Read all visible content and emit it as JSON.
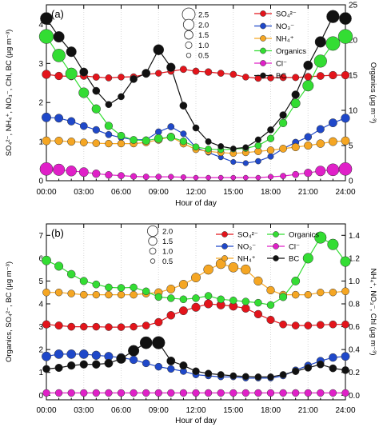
{
  "chart_data": [
    {
      "type": "line",
      "panel_label": "(a)",
      "xlabel": "Hour of day",
      "ylabel_left": "SO₄²⁻, NH₄⁺, NO₃⁻, Chl, BC (μg m⁻³)",
      "ylabel_right": "Organics (μg m⁻³)",
      "x_ticks": [
        "00:00",
        "03:00",
        "06:00",
        "09:00",
        "12:00",
        "15:00",
        "18:00",
        "21:00",
        "24:00"
      ],
      "ylim_left": [
        0,
        4.5
      ],
      "yticks_left": [
        "0",
        "1",
        "2",
        "3",
        "4"
      ],
      "ylim_right": [
        0,
        25
      ],
      "yticks_right": [
        "0",
        "5",
        "10",
        "15",
        "20",
        "25"
      ],
      "size_legend": {
        "values": [
          "2.5",
          "2.0",
          "1.5",
          "1.0",
          "0.5"
        ],
        "position": "top-center"
      },
      "legend_position": "top-right",
      "grid": true,
      "x": [
        0,
        1,
        2,
        3,
        4,
        5,
        6,
        7,
        8,
        9,
        10,
        11,
        12,
        13,
        14,
        15,
        16,
        17,
        18,
        19,
        20,
        21,
        22,
        23,
        24
      ],
      "series": [
        {
          "name": "SO₄²⁻",
          "color": "#e3141b",
          "axis": "left",
          "sizes": [
            1.2,
            1.0,
            0.9,
            0.85,
            0.75,
            0.7,
            0.65,
            0.65,
            0.65,
            0.65,
            0.7,
            0.75,
            0.75,
            0.8,
            0.7,
            0.7,
            0.65,
            0.7,
            0.7,
            0.75,
            0.75,
            0.85,
            0.9,
            1.0,
            1.0
          ],
          "values": [
            2.72,
            2.68,
            2.67,
            2.68,
            2.65,
            2.63,
            2.65,
            2.66,
            2.72,
            2.75,
            2.8,
            2.85,
            2.8,
            2.78,
            2.75,
            2.72,
            2.65,
            2.62,
            2.63,
            2.64,
            2.64,
            2.66,
            2.68,
            2.7,
            2.7
          ]
        },
        {
          "name": "NO₃⁻",
          "color": "#1f48c9",
          "axis": "left",
          "sizes": [
            1.3,
            1.1,
            1.0,
            0.9,
            0.8,
            0.7,
            0.6,
            0.55,
            0.6,
            0.65,
            0.7,
            0.6,
            0.5,
            0.45,
            0.4,
            0.4,
            0.45,
            0.5,
            0.55,
            0.6,
            0.75,
            0.85,
            0.95,
            1.1,
            1.2
          ],
          "values": [
            1.62,
            1.6,
            1.52,
            1.4,
            1.3,
            1.18,
            1.1,
            1.05,
            1.05,
            1.25,
            1.38,
            1.2,
            0.85,
            0.72,
            0.6,
            0.48,
            0.45,
            0.5,
            0.62,
            0.82,
            0.98,
            1.12,
            1.32,
            1.48,
            1.6
          ]
        },
        {
          "name": "NH₄⁺",
          "color": "#f5a623",
          "axis": "left",
          "sizes": [
            1.1,
            1.0,
            0.95,
            0.9,
            0.85,
            0.8,
            0.8,
            0.8,
            0.85,
            0.95,
            1.0,
            0.85,
            0.75,
            0.7,
            0.7,
            0.7,
            0.75,
            0.8,
            0.85,
            0.9,
            0.95,
            1.0,
            1.05,
            1.1,
            1.1
          ],
          "values": [
            1.02,
            1.02,
            1.0,
            0.98,
            0.96,
            0.95,
            0.95,
            0.95,
            0.98,
            1.05,
            1.12,
            0.95,
            0.8,
            0.75,
            0.72,
            0.7,
            0.72,
            0.75,
            0.78,
            0.82,
            0.86,
            0.9,
            0.95,
            1.0,
            1.02
          ]
        },
        {
          "name": "Organics",
          "color": "#33dd33",
          "axis": "right",
          "sizes": [
            2.5,
            2.2,
            1.9,
            1.5,
            1.2,
            1.0,
            0.9,
            0.9,
            1.0,
            1.1,
            1.0,
            0.8,
            0.7,
            0.65,
            0.6,
            0.6,
            0.65,
            0.7,
            0.8,
            1.0,
            1.3,
            1.7,
            2.1,
            2.4,
            2.5
          ],
          "values": [
            20.5,
            17.8,
            15.2,
            12.5,
            10.2,
            7.8,
            6.4,
            5.8,
            5.7,
            6.0,
            6.2,
            5.6,
            4.8,
            4.5,
            4.4,
            4.5,
            4.6,
            5.0,
            6.0,
            8.2,
            11.0,
            13.5,
            17.0,
            19.5,
            20.5
          ]
        },
        {
          "name": "Cl⁻",
          "color": "#e020c8",
          "axis": "left",
          "sizes": [
            2.2,
            1.9,
            1.6,
            1.3,
            1.0,
            0.8,
            0.7,
            0.6,
            0.55,
            0.5,
            0.45,
            0.4,
            0.35,
            0.35,
            0.35,
            0.35,
            0.35,
            0.35,
            0.4,
            0.5,
            0.7,
            1.0,
            1.5,
            2.0,
            2.2
          ],
          "values": [
            0.3,
            0.28,
            0.25,
            0.22,
            0.18,
            0.15,
            0.13,
            0.11,
            0.1,
            0.1,
            0.1,
            0.09,
            0.08,
            0.08,
            0.08,
            0.08,
            0.08,
            0.08,
            0.1,
            0.12,
            0.16,
            0.2,
            0.25,
            0.28,
            0.3
          ]
        },
        {
          "name": "BC",
          "color": "#111111",
          "axis": "left",
          "sizes": [
            2.0,
            1.7,
            1.5,
            1.1,
            0.9,
            0.7,
            0.7,
            0.9,
            1.1,
            1.6,
            1.2,
            0.9,
            0.7,
            0.6,
            0.55,
            0.5,
            0.55,
            0.6,
            0.7,
            0.8,
            1.0,
            1.3,
            1.7,
            2.1,
            2.0
          ],
          "values": [
            4.15,
            3.68,
            3.3,
            2.78,
            2.3,
            1.95,
            2.15,
            2.6,
            2.75,
            3.35,
            2.9,
            1.92,
            1.35,
            1.0,
            0.88,
            0.82,
            0.85,
            1.05,
            1.3,
            1.68,
            2.2,
            2.95,
            3.55,
            4.2,
            4.15
          ]
        }
      ]
    },
    {
      "type": "line",
      "panel_label": "(b)",
      "xlabel": "Hour of day",
      "ylabel_left": "Organics, SO₄²⁻, BC (μg m⁻³)",
      "ylabel_right": "NH₄⁺, NO₃⁻, Chl (μg m⁻³)",
      "x_ticks": [
        "00:00",
        "03:00",
        "06:00",
        "09:00",
        "12:00",
        "15:00",
        "18:00",
        "21:00",
        "24:00"
      ],
      "ylim_left": [
        -0.2,
        7.5
      ],
      "yticks_left": [
        "0",
        "1",
        "2",
        "3",
        "4",
        "5",
        "6",
        "7"
      ],
      "ylim_right": [
        -0.04,
        1.5
      ],
      "yticks_right": [
        "0.0",
        "0.2",
        "0.4",
        "0.6",
        "0.8",
        "1.0",
        "1.2",
        "1.4"
      ],
      "size_legend": {
        "values": [
          "2.0",
          "1.5",
          "1.0",
          "0.5"
        ],
        "position": "top-center"
      },
      "legend_position": "top-right",
      "grid": true,
      "x": [
        0,
        1,
        2,
        3,
        4,
        5,
        6,
        7,
        8,
        9,
        10,
        11,
        12,
        13,
        14,
        15,
        16,
        17,
        18,
        19,
        20,
        21,
        22,
        23,
        24
      ],
      "series": [
        {
          "name": "SO₄²⁻",
          "color": "#e3141b",
          "axis": "left",
          "sizes": [
            1.0,
            0.95,
            0.9,
            0.85,
            0.85,
            0.85,
            0.85,
            0.85,
            0.9,
            1.0,
            1.05,
            1.1,
            1.15,
            1.15,
            1.1,
            1.1,
            1.05,
            1.0,
            0.95,
            0.9,
            0.9,
            0.9,
            0.9,
            0.9,
            0.9
          ],
          "values": [
            3.1,
            3.05,
            3.0,
            3.0,
            3.0,
            2.98,
            2.98,
            3.0,
            3.05,
            3.2,
            3.5,
            3.7,
            3.85,
            4.0,
            3.95,
            3.9,
            3.8,
            3.55,
            3.3,
            3.1,
            3.05,
            3.05,
            3.08,
            3.1,
            3.1
          ]
        },
        {
          "name": "NO₃⁻",
          "color": "#1f48c9",
          "axis": "right",
          "sizes": [
            1.3,
            1.25,
            1.25,
            1.25,
            1.2,
            1.15,
            1.1,
            1.0,
            0.9,
            0.85,
            0.8,
            0.75,
            0.7,
            0.65,
            0.6,
            0.6,
            0.6,
            0.6,
            0.6,
            0.65,
            0.75,
            0.85,
            0.95,
            1.05,
            1.1
          ],
          "values": [
            0.34,
            0.36,
            0.36,
            0.36,
            0.35,
            0.34,
            0.33,
            0.31,
            0.28,
            0.25,
            0.23,
            0.21,
            0.18,
            0.17,
            0.16,
            0.16,
            0.15,
            0.15,
            0.15,
            0.17,
            0.22,
            0.26,
            0.3,
            0.33,
            0.34
          ]
        },
        {
          "name": "NH₄⁺",
          "color": "#f5a623",
          "axis": "right",
          "sizes": [
            0.9,
            0.85,
            0.85,
            0.85,
            0.8,
            0.8,
            0.8,
            0.85,
            0.9,
            1.0,
            1.1,
            1.2,
            1.3,
            1.4,
            1.45,
            1.45,
            1.4,
            1.2,
            1.0,
            0.9,
            0.85,
            0.8,
            0.8,
            0.85,
            0.9
          ],
          "values": [
            0.9,
            0.9,
            0.89,
            0.88,
            0.88,
            0.88,
            0.88,
            0.88,
            0.89,
            0.9,
            0.93,
            0.97,
            1.03,
            1.1,
            1.15,
            1.12,
            1.1,
            1.0,
            0.92,
            0.88,
            0.88,
            0.88,
            0.9,
            0.9,
            0.91
          ]
        },
        {
          "name": "Organics",
          "color": "#33dd33",
          "axis": "left",
          "sizes": [
            1.3,
            1.15,
            1.05,
            0.95,
            0.9,
            0.85,
            0.85,
            0.85,
            0.85,
            0.85,
            0.85,
            0.85,
            0.85,
            0.85,
            0.85,
            0.85,
            0.85,
            0.85,
            0.85,
            0.95,
            1.1,
            1.5,
            1.9,
            1.7,
            1.5
          ],
          "values": [
            5.9,
            5.65,
            5.3,
            5.0,
            4.85,
            4.72,
            4.7,
            4.72,
            4.55,
            4.3,
            4.25,
            4.2,
            4.25,
            4.35,
            4.2,
            4.15,
            4.1,
            4.05,
            3.95,
            4.3,
            5.0,
            6.0,
            6.9,
            6.6,
            5.85
          ]
        },
        {
          "name": "Cl⁻",
          "color": "#e020c8",
          "axis": "right",
          "sizes": [
            0.8,
            0.8,
            0.8,
            0.8,
            0.8,
            0.8,
            0.8,
            0.8,
            0.8,
            0.8,
            0.8,
            0.8,
            0.8,
            0.8,
            0.8,
            0.8,
            0.8,
            0.8,
            0.8,
            0.8,
            0.8,
            0.8,
            0.8,
            0.8,
            0.8
          ],
          "values": [
            0.02,
            0.02,
            0.02,
            0.02,
            0.02,
            0.02,
            0.02,
            0.02,
            0.02,
            0.02,
            0.02,
            0.02,
            0.02,
            0.02,
            0.02,
            0.02,
            0.02,
            0.02,
            0.02,
            0.02,
            0.02,
            0.02,
            0.02,
            0.02,
            0.02
          ]
        },
        {
          "name": "BC",
          "color": "#111111",
          "axis": "left",
          "sizes": [
            0.9,
            0.95,
            1.0,
            1.0,
            1.05,
            1.1,
            1.4,
            1.7,
            2.0,
            2.1,
            1.1,
            0.95,
            0.85,
            0.8,
            0.75,
            0.7,
            0.7,
            0.7,
            0.7,
            0.75,
            0.8,
            0.85,
            0.9,
            0.9,
            0.9
          ],
          "values": [
            1.15,
            1.2,
            1.3,
            1.35,
            1.35,
            1.4,
            1.6,
            1.95,
            2.3,
            2.3,
            1.5,
            1.3,
            1.05,
            0.95,
            0.9,
            0.85,
            0.82,
            0.8,
            0.8,
            0.9,
            1.05,
            1.2,
            1.35,
            1.18,
            1.1
          ]
        }
      ]
    }
  ]
}
